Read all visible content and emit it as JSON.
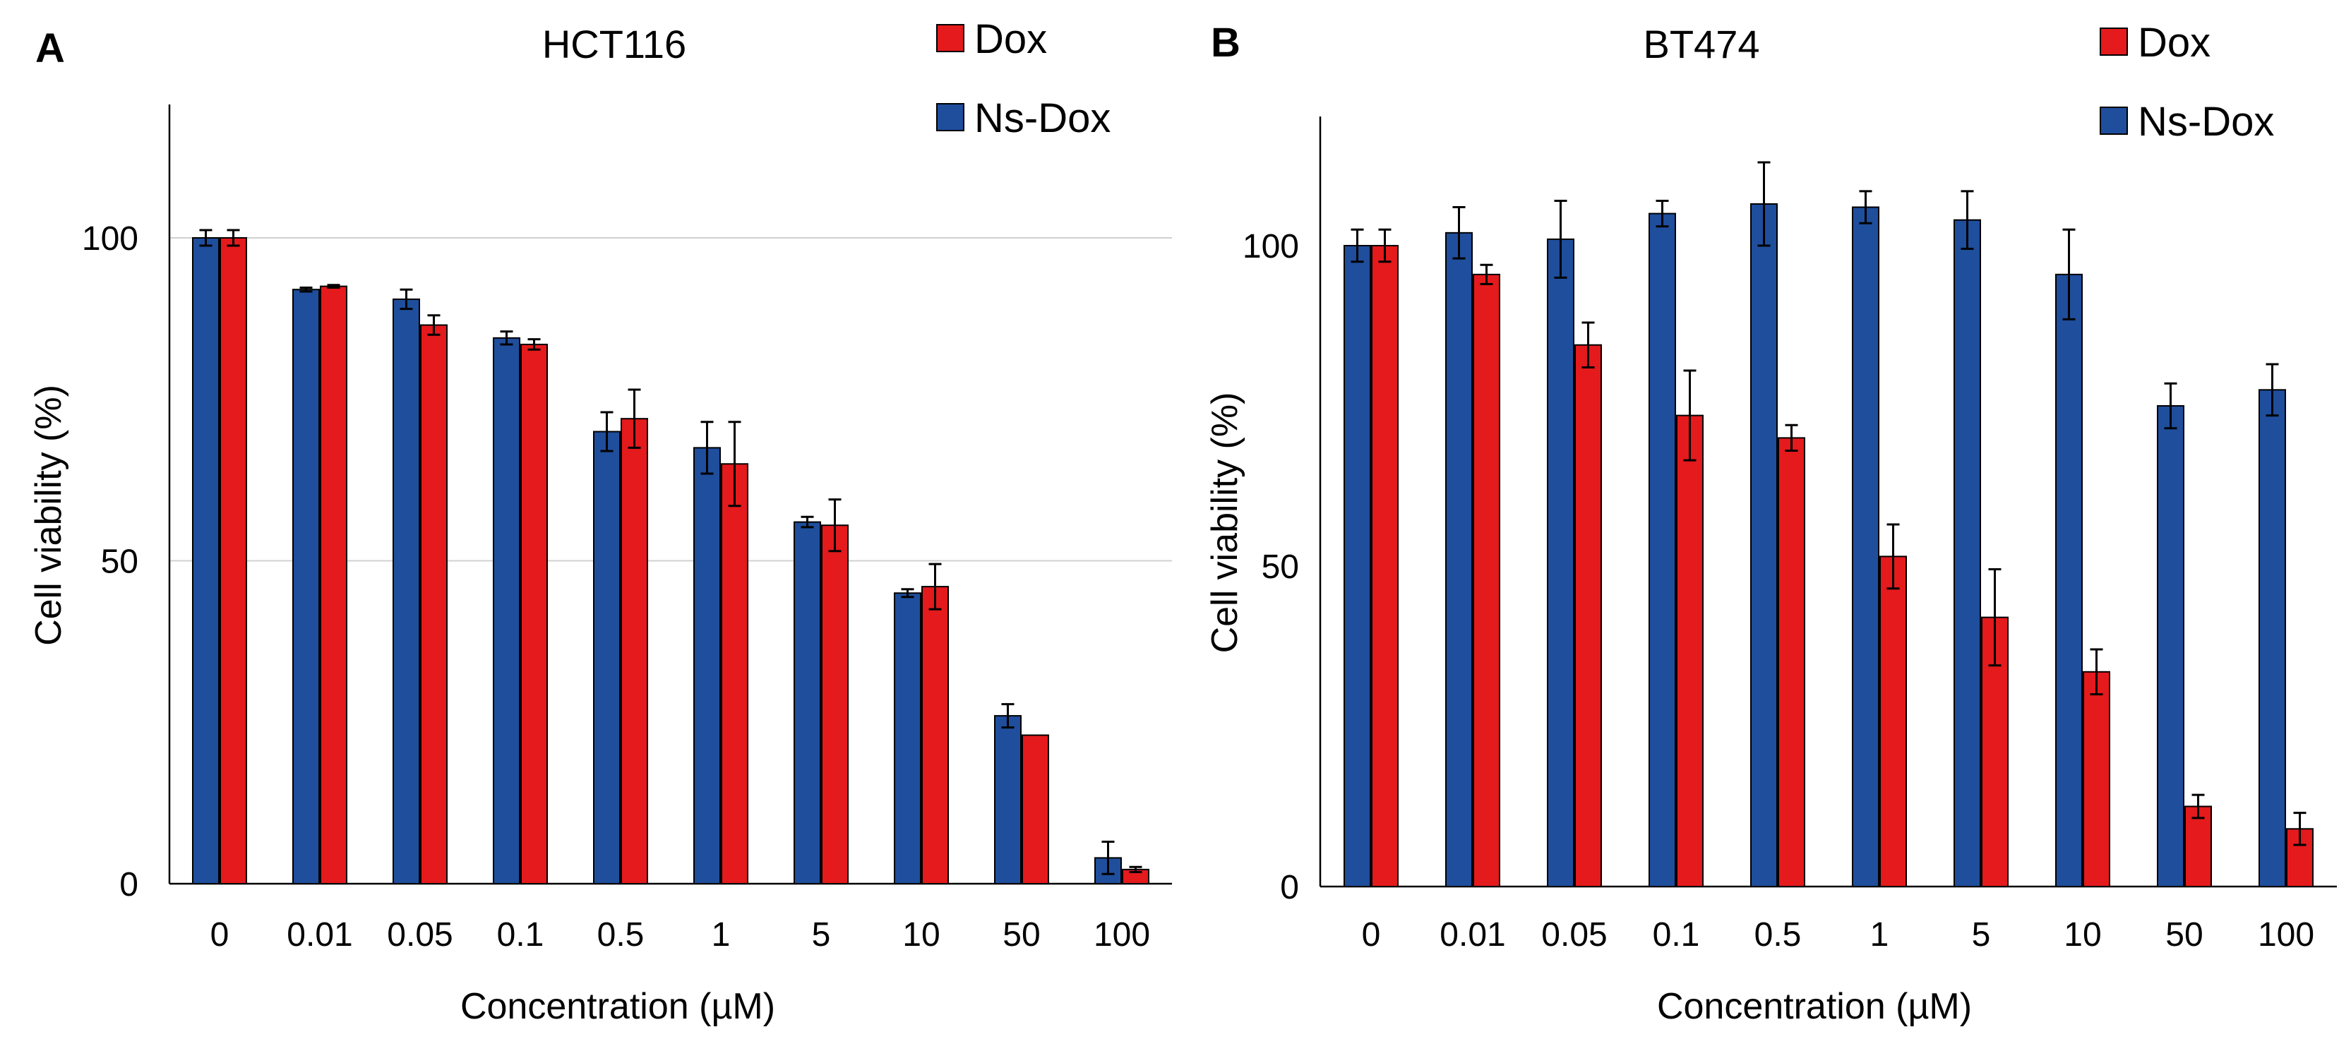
{
  "colors": {
    "dox": "#e41a1c",
    "ns_dox": "#1f4e9c"
  },
  "chart_data": [
    {
      "panel": "A",
      "type": "bar",
      "title": "HCT116",
      "xlabel": "Concentration (µM)",
      "ylabel": "Cell viability (%)",
      "ylim": [
        0,
        120
      ],
      "yticks": [
        0,
        50,
        100
      ],
      "grid": true,
      "legend_position": "top-right",
      "categories": [
        "0",
        "0.01",
        "0.05",
        "0.1",
        "0.5",
        "1",
        "5",
        "10",
        "50",
        "100"
      ],
      "series": [
        {
          "name": "Ns-Dox",
          "color_key": "ns_dox",
          "values": [
            100,
            92,
            90.5,
            84.5,
            70,
            67.5,
            56,
            45,
            26,
            4
          ],
          "errors": [
            1.2,
            0.3,
            1.5,
            1,
            3,
            4,
            0.8,
            0.6,
            1.8,
            2.5
          ]
        },
        {
          "name": "Dox",
          "color_key": "dox",
          "values": [
            100,
            92.5,
            86.5,
            83.5,
            72,
            65,
            55.5,
            46,
            23,
            2.2
          ],
          "errors": [
            1.2,
            0.2,
            1.5,
            0.8,
            4.5,
            6.5,
            4,
            3.5,
            0,
            0.4
          ]
        }
      ]
    },
    {
      "panel": "B",
      "type": "bar",
      "title": "BT474",
      "xlabel": "Concentration (µM)",
      "ylabel": "Cell viability (%)",
      "ylim": [
        0,
        120
      ],
      "yticks": [
        0,
        50,
        100
      ],
      "grid": false,
      "legend_position": "top-right",
      "categories": [
        "0",
        "0.01",
        "0.05",
        "0.1",
        "0.5",
        "1",
        "5",
        "10",
        "50",
        "100"
      ],
      "series": [
        {
          "name": "Ns-Dox",
          "color_key": "ns_dox",
          "values": [
            100,
            102,
            101,
            105,
            106.5,
            106,
            104,
            95.5,
            75,
            77.5
          ],
          "errors": [
            2.5,
            4,
            6,
            2,
            6.5,
            2.5,
            4.5,
            7,
            3.5,
            4
          ]
        },
        {
          "name": "Dox",
          "color_key": "dox",
          "values": [
            100,
            95.5,
            84.5,
            73.5,
            70,
            51.5,
            42,
            33.5,
            12.5,
            9
          ],
          "errors": [
            2.5,
            1.5,
            3.5,
            7,
            2,
            5,
            7.5,
            3.5,
            1.8,
            2.5
          ]
        }
      ]
    }
  ]
}
